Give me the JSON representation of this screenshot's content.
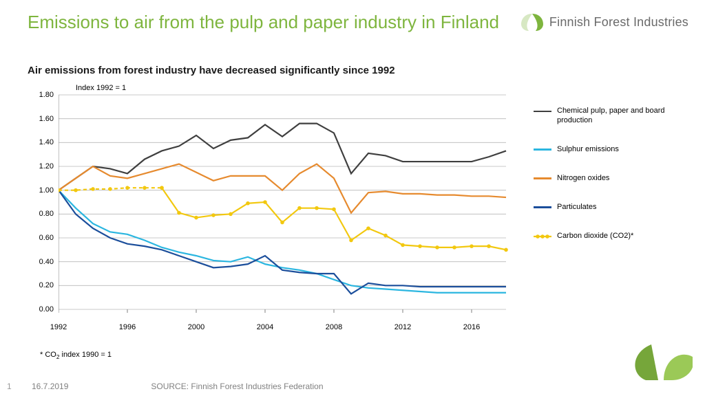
{
  "title": "Emissions to air from the pulp and paper industry in Finland",
  "subtitle": "Air emissions from forest industry have decreased significantly since 1992",
  "index_label": "Index 1992 = 1",
  "footnote_html": "* CO<sub>2</sub> index 1990 = 1",
  "brand_name": "Finnish Forest Industries",
  "brand_color": "#7eb53e",
  "footer": {
    "page": "1",
    "date": "16.7.2019",
    "source": "SOURCE: Finnish Forest Industries Federation"
  },
  "chart": {
    "type": "line",
    "background_color": "#ffffff",
    "grid_color": "#b7b7b7",
    "axis_color": "#808080",
    "ylim": [
      0.0,
      1.8
    ],
    "yticks": [
      0.0,
      0.2,
      0.4,
      0.6,
      0.8,
      1.0,
      1.2,
      1.4,
      1.6,
      1.8
    ],
    "ytick_labels": [
      "0.00",
      "0.20",
      "0.40",
      "0.60",
      "0.80",
      "1.00",
      "1.20",
      "1.40",
      "1.60",
      "1.80"
    ],
    "xlim": [
      1992,
      2018
    ],
    "xticks": [
      1992,
      1996,
      2000,
      2004,
      2008,
      2012,
      2016
    ],
    "xticks_labels": [
      "1992",
      "1996",
      "2000",
      "2004",
      "2008",
      "2012",
      "2016"
    ],
    "label_fontsize": 11,
    "series": [
      {
        "name": "Chemical pulp, paper and board production",
        "color": "#3f3f3f",
        "width": 2.2,
        "dash": "none",
        "markers": false,
        "x": [
          1992,
          1993,
          1994,
          1995,
          1996,
          1997,
          1998,
          1999,
          2000,
          2001,
          2002,
          2003,
          2004,
          2005,
          2006,
          2007,
          2008,
          2009,
          2010,
          2011,
          2012,
          2013,
          2014,
          2015,
          2016,
          2017,
          2018
        ],
        "y": [
          1.0,
          1.1,
          1.2,
          1.18,
          1.14,
          1.26,
          1.33,
          1.37,
          1.46,
          1.35,
          1.42,
          1.44,
          1.55,
          1.45,
          1.56,
          1.56,
          1.48,
          1.14,
          1.31,
          1.29,
          1.24,
          1.24,
          1.24,
          1.24,
          1.24,
          1.28,
          1.33
        ]
      },
      {
        "name": "Sulphur emissions",
        "color": "#2bb6e0",
        "width": 2.2,
        "dash": "none",
        "markers": false,
        "x": [
          1992,
          1993,
          1994,
          1995,
          1996,
          1997,
          1998,
          1999,
          2000,
          2001,
          2002,
          2003,
          2004,
          2005,
          2006,
          2007,
          2008,
          2009,
          2010,
          2011,
          2012,
          2013,
          2014,
          2015,
          2016,
          2017,
          2018
        ],
        "y": [
          1.0,
          0.85,
          0.72,
          0.65,
          0.63,
          0.58,
          0.52,
          0.48,
          0.45,
          0.41,
          0.4,
          0.44,
          0.38,
          0.35,
          0.33,
          0.3,
          0.25,
          0.2,
          0.18,
          0.17,
          0.16,
          0.15,
          0.14,
          0.14,
          0.14,
          0.14,
          0.14
        ]
      },
      {
        "name": "Nitrogen oxides",
        "color": "#e68a2e",
        "width": 2.2,
        "dash": "none",
        "markers": false,
        "x": [
          1992,
          1993,
          1994,
          1995,
          1996,
          1997,
          1998,
          1999,
          2000,
          2001,
          2002,
          2003,
          2004,
          2005,
          2006,
          2007,
          2008,
          2009,
          2010,
          2011,
          2012,
          2013,
          2014,
          2015,
          2016,
          2017,
          2018
        ],
        "y": [
          1.0,
          1.1,
          1.2,
          1.12,
          1.1,
          1.14,
          1.18,
          1.22,
          1.15,
          1.08,
          1.12,
          1.12,
          1.12,
          1.0,
          1.14,
          1.22,
          1.1,
          0.81,
          0.98,
          0.99,
          0.97,
          0.97,
          0.96,
          0.96,
          0.95,
          0.95,
          0.94
        ]
      },
      {
        "name": "Particulates",
        "color": "#1b4e9b",
        "width": 2.2,
        "dash": "none",
        "markers": false,
        "x": [
          1992,
          1993,
          1994,
          1995,
          1996,
          1997,
          1998,
          1999,
          2000,
          2001,
          2002,
          2003,
          2004,
          2005,
          2006,
          2007,
          2008,
          2009,
          2010,
          2011,
          2012,
          2013,
          2014,
          2015,
          2016,
          2017,
          2018
        ],
        "y": [
          1.0,
          0.8,
          0.68,
          0.6,
          0.55,
          0.53,
          0.5,
          0.45,
          0.4,
          0.35,
          0.36,
          0.38,
          0.45,
          0.33,
          0.31,
          0.3,
          0.3,
          0.13,
          0.22,
          0.2,
          0.2,
          0.19,
          0.19,
          0.19,
          0.19,
          0.19,
          0.19
        ]
      },
      {
        "name": "Carbon dioxide (CO2)*",
        "color": "#f2c80f",
        "width": 2.2,
        "dash_pre": "5,4",
        "dash": "none",
        "markers": true,
        "marker_r": 2.8,
        "x_dash": [
          1992,
          1993,
          1994,
          1995,
          1996,
          1997,
          1998
        ],
        "y_dash": [
          1.0,
          1.0,
          1.01,
          1.01,
          1.02,
          1.02,
          1.02
        ],
        "x": [
          1998,
          1999,
          2000,
          2001,
          2002,
          2003,
          2004,
          2005,
          2006,
          2007,
          2008,
          2009,
          2010,
          2011,
          2012,
          2013,
          2014,
          2015,
          2016,
          2017,
          2018
        ],
        "y": [
          1.02,
          0.81,
          0.77,
          0.79,
          0.8,
          0.89,
          0.9,
          0.73,
          0.85,
          0.85,
          0.84,
          0.58,
          0.68,
          0.62,
          0.54,
          0.53,
          0.52,
          0.52,
          0.53,
          0.53,
          0.5
        ]
      }
    ],
    "legend_order": [
      0,
      1,
      2,
      3,
      4
    ]
  }
}
